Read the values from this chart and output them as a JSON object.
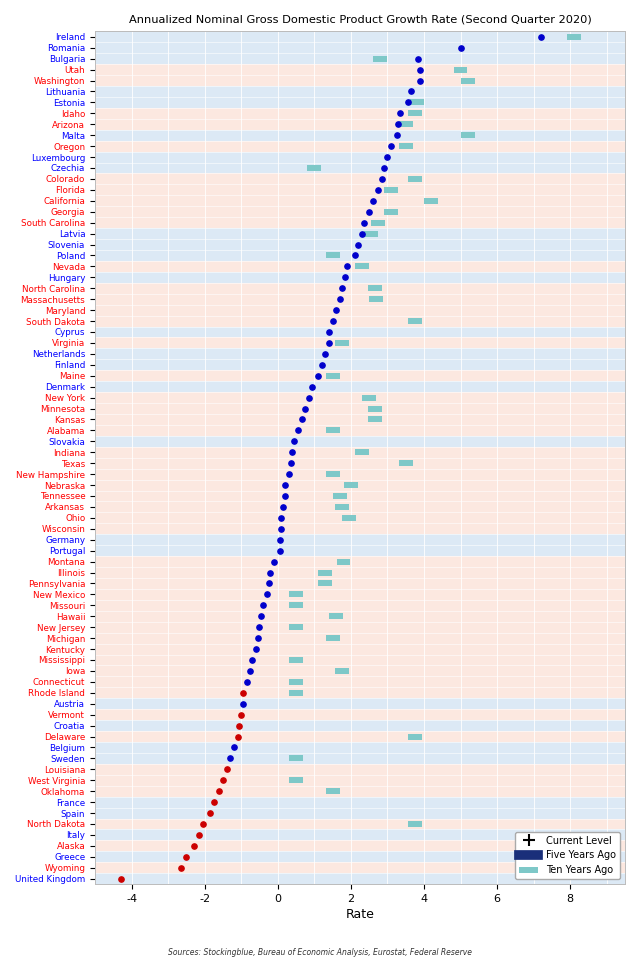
{
  "title": "Annualized Nominal Gross Domestic Product Growth Rate (Second Quarter 2020)",
  "xlabel": "Rate",
  "source": "Sources: Stockingblue, Bureau of Economic Analysis, Eurostat, Federal Reserve",
  "countries": [
    "Ireland",
    "Romania",
    "Bulgaria",
    "Utah",
    "Washington",
    "Lithuania",
    "Estonia",
    "Idaho",
    "Arizona",
    "Malta",
    "Oregon",
    "Luxembourg",
    "Czechia",
    "Colorado",
    "Florida",
    "California",
    "Georgia",
    "South Carolina",
    "Latvia",
    "Slovenia",
    "Poland",
    "Nevada",
    "Hungary",
    "North Carolina",
    "Massachusetts",
    "Maryland",
    "South Dakota",
    "Cyprus",
    "Virginia",
    "Netherlands",
    "Finland",
    "Maine",
    "Denmark",
    "New York",
    "Minnesota",
    "Kansas",
    "Alabama",
    "Slovakia",
    "Indiana",
    "Texas",
    "New Hampshire",
    "Nebraska",
    "Tennessee",
    "Arkansas",
    "Ohio",
    "Wisconsin",
    "Germany",
    "Portugal",
    "Montana",
    "Illinois",
    "Pennsylvania",
    "New Mexico",
    "Missouri",
    "Hawaii",
    "New Jersey",
    "Michigan",
    "Kentucky",
    "Mississippi",
    "Iowa",
    "Connecticut",
    "Rhode Island",
    "Austria",
    "Vermont",
    "Croatia",
    "Delaware",
    "Belgium",
    "Sweden",
    "Louisiana",
    "West Virginia",
    "Oklahoma",
    "France",
    "Spain",
    "North Dakota",
    "Italy",
    "Alaska",
    "Greece",
    "Wyoming",
    "United Kingdom"
  ],
  "current": [
    7.2,
    5.0,
    3.85,
    3.9,
    3.9,
    3.65,
    3.55,
    3.35,
    3.3,
    3.25,
    3.1,
    3.0,
    2.9,
    2.85,
    2.75,
    2.6,
    2.5,
    2.35,
    2.3,
    2.2,
    2.1,
    1.9,
    1.85,
    1.75,
    1.7,
    1.6,
    1.5,
    1.4,
    1.4,
    1.3,
    1.2,
    1.1,
    0.95,
    0.85,
    0.75,
    0.65,
    0.55,
    0.45,
    0.4,
    0.35,
    0.3,
    0.2,
    0.2,
    0.15,
    0.1,
    0.1,
    0.05,
    0.05,
    -0.1,
    -0.2,
    -0.25,
    -0.3,
    -0.4,
    -0.45,
    -0.5,
    -0.55,
    -0.6,
    -0.7,
    -0.75,
    -0.85,
    -0.95,
    -0.95,
    -1.0,
    -1.05,
    -1.1,
    -1.2,
    -1.3,
    -1.4,
    -1.5,
    -1.6,
    -1.75,
    -1.85,
    -2.05,
    -2.15,
    -2.3,
    -2.5,
    -2.65,
    -4.3
  ],
  "five_years": [
    null,
    null,
    null,
    null,
    null,
    null,
    null,
    null,
    null,
    null,
    null,
    null,
    null,
    null,
    null,
    null,
    null,
    null,
    null,
    null,
    null,
    null,
    null,
    null,
    null,
    null,
    null,
    null,
    null,
    null,
    null,
    null,
    null,
    null,
    null,
    null,
    null,
    null,
    null,
    null,
    null,
    null,
    null,
    null,
    null,
    null,
    null,
    null,
    null,
    null,
    null,
    null,
    null,
    null,
    null,
    null,
    null,
    null,
    null,
    null,
    null,
    null,
    null,
    null,
    null,
    null,
    null,
    null,
    null,
    null,
    null,
    null,
    null,
    null,
    null,
    null,
    null,
    null
  ],
  "ten_years": [
    8.1,
    null,
    2.8,
    5.0,
    5.2,
    null,
    3.8,
    3.75,
    3.5,
    5.2,
    3.5,
    null,
    1.0,
    3.75,
    3.1,
    4.2,
    3.1,
    2.75,
    2.55,
    null,
    1.5,
    2.3,
    null,
    2.65,
    2.7,
    null,
    3.75,
    null,
    1.75,
    null,
    null,
    1.5,
    null,
    2.5,
    2.65,
    2.65,
    1.5,
    null,
    2.3,
    3.5,
    1.5,
    2.0,
    1.7,
    1.75,
    1.95,
    null,
    null,
    null,
    1.8,
    1.3,
    1.3,
    0.5,
    0.5,
    1.6,
    0.5,
    1.5,
    null,
    0.5,
    1.75,
    0.5,
    0.5,
    null,
    null,
    null,
    3.75,
    null,
    0.5,
    null,
    0.5,
    1.5,
    null,
    null,
    3.75,
    null,
    null,
    null,
    null,
    null
  ],
  "label_colors": [
    "blue",
    "blue",
    "blue",
    "red",
    "red",
    "blue",
    "blue",
    "red",
    "red",
    "blue",
    "red",
    "blue",
    "blue",
    "red",
    "red",
    "red",
    "red",
    "red",
    "blue",
    "blue",
    "blue",
    "red",
    "blue",
    "red",
    "red",
    "red",
    "red",
    "blue",
    "red",
    "blue",
    "blue",
    "red",
    "blue",
    "red",
    "red",
    "red",
    "red",
    "blue",
    "red",
    "red",
    "red",
    "red",
    "red",
    "red",
    "red",
    "red",
    "blue",
    "blue",
    "red",
    "red",
    "red",
    "red",
    "red",
    "red",
    "red",
    "red",
    "red",
    "red",
    "red",
    "red",
    "red",
    "blue",
    "red",
    "blue",
    "red",
    "blue",
    "blue",
    "red",
    "red",
    "red",
    "blue",
    "blue",
    "red",
    "blue",
    "red",
    "blue",
    "red",
    "blue"
  ],
  "dot_colors": [
    "blue",
    "blue",
    "blue",
    "blue",
    "blue",
    "blue",
    "blue",
    "blue",
    "blue",
    "blue",
    "blue",
    "blue",
    "blue",
    "blue",
    "blue",
    "blue",
    "blue",
    "blue",
    "blue",
    "blue",
    "blue",
    "blue",
    "blue",
    "blue",
    "blue",
    "blue",
    "blue",
    "blue",
    "blue",
    "blue",
    "blue",
    "blue",
    "blue",
    "blue",
    "blue",
    "blue",
    "blue",
    "blue",
    "blue",
    "blue",
    "blue",
    "blue",
    "blue",
    "blue",
    "blue",
    "blue",
    "blue",
    "blue",
    "blue",
    "blue",
    "blue",
    "blue",
    "blue",
    "blue",
    "blue",
    "blue",
    "blue",
    "blue",
    "blue",
    "blue",
    "red",
    "blue",
    "red",
    "red",
    "red",
    "blue",
    "blue",
    "red",
    "red",
    "red",
    "red",
    "red",
    "red",
    "red",
    "red",
    "red",
    "red",
    "red"
  ],
  "xlim": [
    -5.0,
    9.5
  ],
  "xticks": [
    -4,
    -2,
    0,
    2,
    4,
    6,
    8
  ],
  "bg_color_eu": "#dce9f5",
  "bg_color_us": "#fce8e0",
  "five_yr_color": "#1a2f7a",
  "ten_yr_color": "#7ec8c8",
  "current_dot_blue": "#0000cc",
  "current_dot_red": "#cc0000"
}
